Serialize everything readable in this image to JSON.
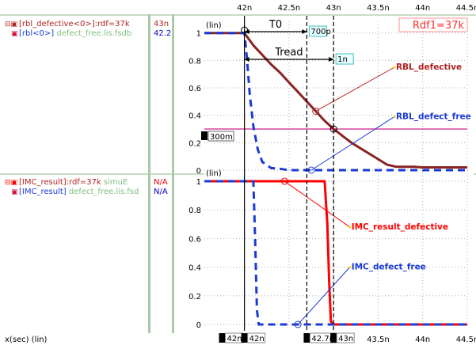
{
  "legend": {
    "top": [
      {
        "label": "[rbl_defective<0>]:rdf=37k",
        "value": "43n",
        "color": "#b22222",
        "value_color": "#b22222"
      },
      {
        "label": "[rbl<0>]",
        "source": "defect_free.lis.fsdb",
        "value": "42.2",
        "color": "#d0103a",
        "value_color": "#0000cc"
      }
    ],
    "bottom": [
      {
        "label": "[IMC_result]:rdf=37k",
        "source": "simuE",
        "value": "N/A",
        "color": "#ff0000",
        "value_color": "#ff0000"
      },
      {
        "label": "[IMC_result]",
        "source": "defect_free.lis.fsd",
        "value": "N/A",
        "color": "#d0103a",
        "value_color": "#0000cc"
      }
    ]
  },
  "xaxis_label": "x(sec) (lin)",
  "chart_data": {
    "type": "line",
    "xlim": [
      41.55,
      44.5
    ],
    "x_ticks": [
      {
        "x": 42,
        "label": "42n"
      },
      {
        "x": 42.5,
        "label": "42.5n"
      },
      {
        "x": 43,
        "label": "43n"
      },
      {
        "x": 43.5,
        "label": "43.5n"
      },
      {
        "x": 44,
        "label": "44n"
      },
      {
        "x": 44.5,
        "label": "44.5n"
      }
    ],
    "cursor_labels": [
      {
        "id": "1",
        "x": 41.75,
        "label": "42n"
      },
      {
        "id": "3",
        "x": 42.0,
        "label": "42n"
      },
      {
        "id": "2",
        "x": 42.7,
        "label": "42.7n"
      },
      {
        "id": "4",
        "x": 43.0,
        "label": "43n"
      }
    ],
    "cursors": [
      {
        "x": 42.0,
        "style": "solid"
      },
      {
        "x": 42.7,
        "style": "dashed"
      },
      {
        "x": 43.0,
        "style": "dashed"
      }
    ],
    "measurements": [
      {
        "label": "T0",
        "from": 42.0,
        "to": 42.7,
        "value": "700p"
      },
      {
        "label": "Tread",
        "from": 42.0,
        "to": 43.0,
        "value": "1n"
      }
    ],
    "panels": [
      {
        "ylabel": "(lin)",
        "ylim": [
          0,
          1.05
        ],
        "y_ticks": [
          0,
          0.2,
          0.4,
          0.6,
          0.8,
          1
        ],
        "annotation": "Rdf1=37k",
        "hline": {
          "y": 0.3,
          "label": "300m",
          "marker": "5"
        },
        "series": [
          {
            "name": "RBL_defective",
            "color": "#8b2323",
            "dash": false,
            "x": [
              41.55,
              41.98,
              42.0,
              42.1,
              42.2,
              42.3,
              42.4,
              42.5,
              42.6,
              42.7,
              42.8,
              42.9,
              43.0,
              43.1,
              43.2,
              43.3,
              43.4,
              43.5,
              43.6,
              43.7,
              43.8,
              43.9,
              44.0,
              44.2,
              44.5
            ],
            "y": [
              1,
              1,
              1,
              0.91,
              0.84,
              0.77,
              0.71,
              0.64,
              0.57,
              0.5,
              0.43,
              0.36,
              0.3,
              0.25,
              0.2,
              0.16,
              0.12,
              0.08,
              0.04,
              0.025,
              0.025,
              0.025,
              0.02,
              0.02,
              0.02
            ]
          },
          {
            "name": "RBL_defect_free",
            "color": "#1a3ad6",
            "dash": true,
            "x": [
              41.55,
              41.98,
              42.0,
              42.03,
              42.06,
              42.1,
              42.15,
              42.2,
              42.3,
              42.4,
              42.5,
              42.7,
              43.0,
              43.5,
              44.5
            ],
            "y": [
              1,
              1,
              1,
              0.8,
              0.55,
              0.32,
              0.15,
              0.06,
              0.015,
              0.01,
              0.0,
              0.0,
              0.0,
              0.0,
              0.0
            ]
          }
        ],
        "labels": [
          {
            "text": "RBL_defective",
            "color": "#b22222",
            "x": 43.7,
            "y": 0.75,
            "point_x": 42.8,
            "point_y": 0.43
          },
          {
            "text": "RBL_defect_free",
            "color": "#1a3ad6",
            "x": 43.7,
            "y": 0.39,
            "point_x": 42.75,
            "point_y": 0.0
          }
        ]
      },
      {
        "ylabel": "(lin)",
        "ylim": [
          0,
          1.05
        ],
        "y_ticks": [
          0,
          0.2,
          0.4,
          0.6,
          0.8,
          1
        ],
        "series": [
          {
            "name": "IMC_result_defective",
            "color": "#ff0000",
            "dash": false,
            "x": [
              41.55,
              42.9,
              42.93,
              42.95,
              42.97,
              43.0,
              44.5
            ],
            "y": [
              1,
              1,
              0.7,
              0.3,
              0.02,
              0,
              0
            ]
          },
          {
            "name": "IMC_defect_free",
            "color": "#1a3ad6",
            "dash": true,
            "x": [
              41.55,
              42.1,
              42.12,
              42.14,
              42.16,
              44.5
            ],
            "y": [
              1,
              1,
              0.6,
              0.1,
              0,
              0
            ]
          }
        ],
        "labels": [
          {
            "text": "IMC_result_defective",
            "color": "#ff0000",
            "x": 43.2,
            "y": 0.68,
            "point_x": 42.45,
            "point_y": 1.0
          },
          {
            "text": "IMC_defect_free",
            "color": "#1a3ad6",
            "x": 43.2,
            "y": 0.4,
            "point_x": 42.6,
            "point_y": 0.0
          }
        ]
      }
    ]
  }
}
